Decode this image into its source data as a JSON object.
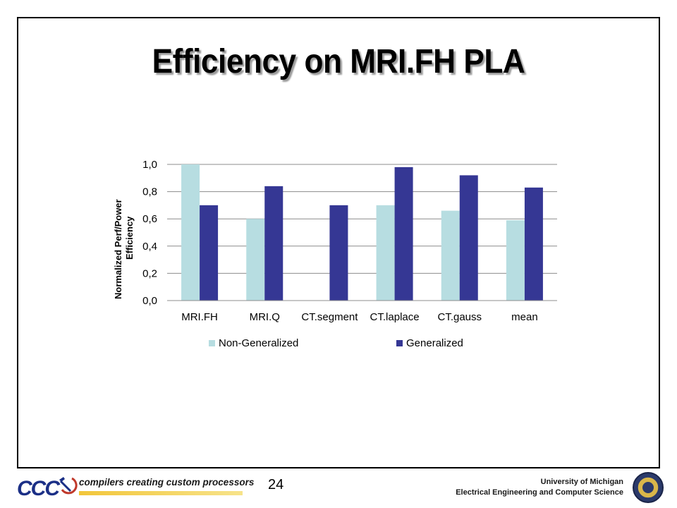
{
  "slide": {
    "title": "Efficiency on MRI.FH PLA",
    "page_number": "24"
  },
  "footer": {
    "logo_text": "CCC",
    "tagline": "compilers creating custom processors",
    "university": "University of Michigan",
    "department": "Electrical Engineering and Computer Science"
  },
  "chart_data": {
    "type": "bar",
    "ylabel_lines": [
      "Normalized    Perf/Power",
      "Efficiency"
    ],
    "categories": [
      "MRI.FH",
      "MRI.Q",
      "CT.segment",
      "CT.laplace",
      "CT.gauss",
      "mean"
    ],
    "series": [
      {
        "name": "Non-Generalized",
        "color": "#b7dde1",
        "values": [
          1.0,
          0.6,
          0.0,
          0.7,
          0.66,
          0.59
        ]
      },
      {
        "name": "Generalized",
        "color": "#353794",
        "values": [
          0.7,
          0.84,
          0.7,
          0.98,
          0.92,
          0.83
        ]
      }
    ],
    "yticks": [
      "0,0",
      "0,2",
      "0,4",
      "0,6",
      "0,8",
      "1,0"
    ],
    "ylim": [
      0,
      1.0
    ],
    "grid": true,
    "legend_position": "bottom"
  }
}
